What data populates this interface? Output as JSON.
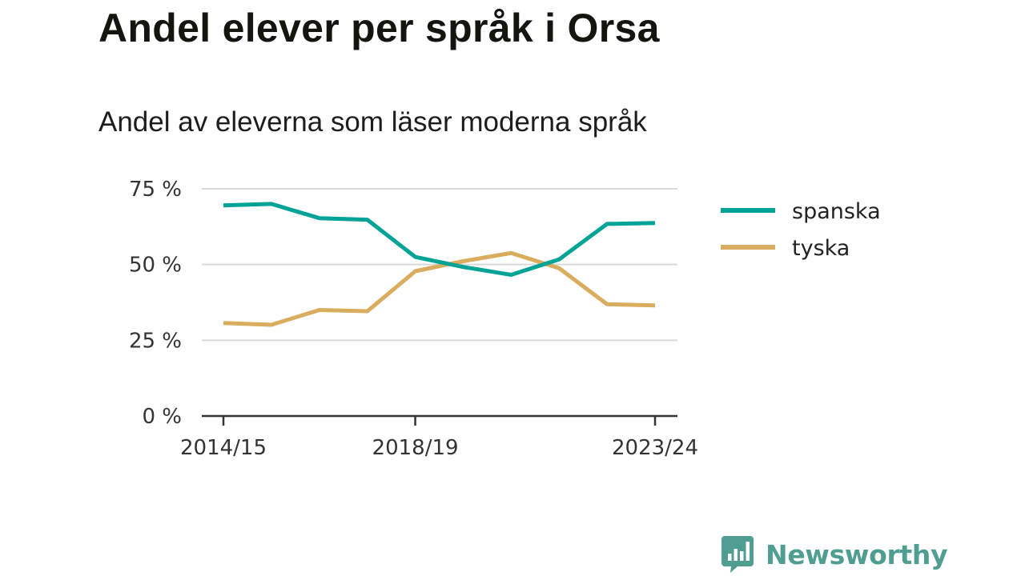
{
  "title": "Andel elever per språk i Orsa",
  "subtitle": "Andel av eleverna som läser moderna språk",
  "brand": {
    "name": "Newsworthy",
    "color": "#4f9e91"
  },
  "chart_data": {
    "type": "line",
    "x": [
      "2014/15",
      "2015/16",
      "2016/17",
      "2017/18",
      "2018/19",
      "2019/20",
      "2020/21",
      "2021/22",
      "2022/23",
      "2023/24"
    ],
    "x_tick_labels": [
      "2014/15",
      "2018/19",
      "2023/24"
    ],
    "y_tick_labels": [
      "0 %",
      "25 %",
      "50 %",
      "75 %"
    ],
    "y_ticks": [
      0,
      25,
      50,
      75
    ],
    "ylim": [
      0,
      75
    ],
    "grid": true,
    "legend_position": "right",
    "series": [
      {
        "name": "spanska",
        "color": "#00a396",
        "values": [
          69.5,
          70.0,
          65.3,
          64.8,
          52.5,
          49.2,
          46.6,
          51.7,
          63.4,
          63.7
        ]
      },
      {
        "name": "tyska",
        "color": "#d9ac5e",
        "values": [
          30.7,
          30.1,
          35.0,
          34.6,
          47.8,
          51.1,
          53.8,
          48.8,
          36.9,
          36.5
        ]
      }
    ]
  }
}
